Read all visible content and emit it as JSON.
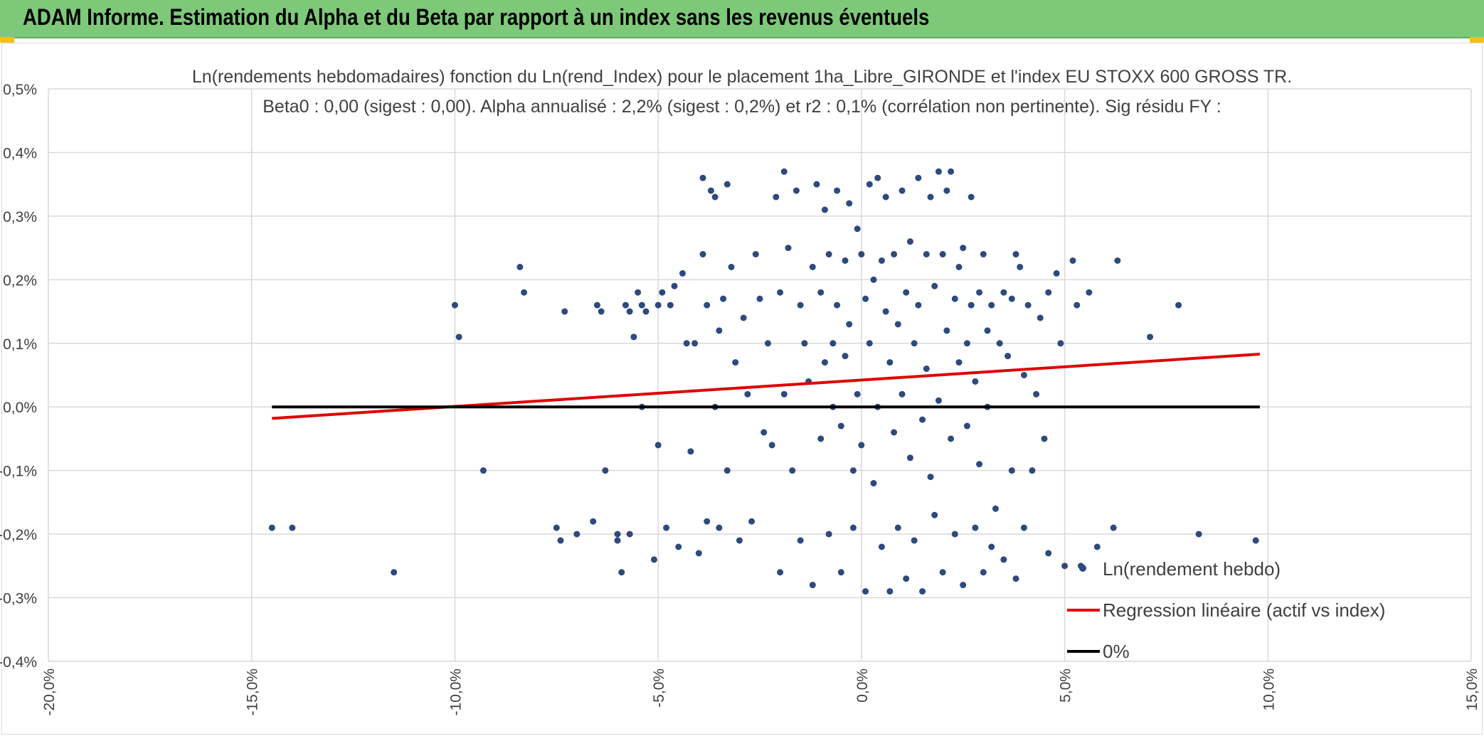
{
  "banner": {
    "title": "ADAM Informe. Estimation du Alpha et du Beta par rapport à un index sans les revenus éventuels",
    "background": "#7ec87a"
  },
  "chart_data": {
    "type": "scatter",
    "title": "Ln(rendements hebdomadaires) fonction du Ln(rend_Index) pour le placement 1ha_Libre_GIRONDE et l'index EU STOXX 600 GROSS TR.",
    "subtitle": "Beta0 : 0,00 (sigest : 0,00). Alpha annualisé : 2,2% (sigest : 0,2%) et r2 : 0,1% (corrélation non pertinente). Sig résidu FY :",
    "xlabel": "",
    "ylabel": "",
    "xlim": [
      -20,
      15
    ],
    "ylim": [
      -0.4,
      0.5
    ],
    "x_ticks": [
      "-20,0%",
      "-15,0%",
      "-10,0%",
      "-5,0%",
      "0,0%",
      "5,0%",
      "10,0%",
      "15,0%"
    ],
    "y_ticks": [
      "-0,4%",
      "-0,3%",
      "-0,2%",
      "-0,1%",
      "0,0%",
      "0,1%",
      "0,2%",
      "0,3%",
      "0,4%",
      "0,5%"
    ],
    "grid": true,
    "legend_position": "bottom-right",
    "series": [
      {
        "name": "Ln(rendement hebdo)",
        "kind": "scatter",
        "color": "#2e4a7d",
        "points": [
          [
            -14.5,
            -0.19
          ],
          [
            -14.0,
            -0.19
          ],
          [
            -11.5,
            -0.26
          ],
          [
            -10.0,
            0.16
          ],
          [
            -9.9,
            0.11
          ],
          [
            -9.3,
            -0.1
          ],
          [
            -8.4,
            0.22
          ],
          [
            -8.3,
            0.18
          ],
          [
            -7.5,
            -0.19
          ],
          [
            -7.4,
            -0.21
          ],
          [
            -7.3,
            0.15
          ],
          [
            -7.0,
            -0.2
          ],
          [
            -6.6,
            -0.18
          ],
          [
            -6.5,
            0.16
          ],
          [
            -6.4,
            0.15
          ],
          [
            -6.3,
            -0.1
          ],
          [
            -6.0,
            -0.21
          ],
          [
            -6.0,
            -0.2
          ],
          [
            -5.9,
            -0.26
          ],
          [
            -5.8,
            0.16
          ],
          [
            -5.7,
            0.15
          ],
          [
            -5.7,
            -0.2
          ],
          [
            -5.6,
            0.11
          ],
          [
            -5.5,
            0.18
          ],
          [
            -5.4,
            0.16
          ],
          [
            -5.4,
            0.0
          ],
          [
            -5.3,
            0.15
          ],
          [
            -5.1,
            -0.24
          ],
          [
            -5.0,
            0.16
          ],
          [
            -5.0,
            -0.06
          ],
          [
            -4.9,
            0.18
          ],
          [
            -4.8,
            -0.19
          ],
          [
            -4.7,
            0.16
          ],
          [
            -4.6,
            0.19
          ],
          [
            -4.5,
            -0.22
          ],
          [
            -4.4,
            0.21
          ],
          [
            -4.3,
            0.1
          ],
          [
            -4.2,
            -0.07
          ],
          [
            -4.1,
            0.1
          ],
          [
            -4.0,
            -0.23
          ],
          [
            -3.9,
            0.36
          ],
          [
            -3.9,
            0.24
          ],
          [
            -3.8,
            0.16
          ],
          [
            -3.8,
            -0.18
          ],
          [
            -3.7,
            0.34
          ],
          [
            -3.6,
            0.33
          ],
          [
            -3.6,
            0.0
          ],
          [
            -3.5,
            0.12
          ],
          [
            -3.5,
            -0.19
          ],
          [
            -3.4,
            0.17
          ],
          [
            -3.3,
            0.35
          ],
          [
            -3.3,
            -0.1
          ],
          [
            -3.2,
            0.22
          ],
          [
            -3.1,
            0.07
          ],
          [
            -3.0,
            -0.21
          ],
          [
            -2.9,
            0.14
          ],
          [
            -2.8,
            0.02
          ],
          [
            -2.7,
            -0.18
          ],
          [
            -2.6,
            0.24
          ],
          [
            -2.5,
            0.17
          ],
          [
            -2.4,
            -0.04
          ],
          [
            -2.3,
            0.1
          ],
          [
            -2.2,
            -0.06
          ],
          [
            -2.1,
            0.33
          ],
          [
            -2.0,
            0.18
          ],
          [
            -2.0,
            -0.26
          ],
          [
            -1.9,
            0.37
          ],
          [
            -1.9,
            0.02
          ],
          [
            -1.8,
            0.25
          ],
          [
            -1.7,
            -0.1
          ],
          [
            -1.6,
            0.34
          ],
          [
            -1.5,
            0.16
          ],
          [
            -1.5,
            -0.21
          ],
          [
            -1.4,
            0.1
          ],
          [
            -1.3,
            0.04
          ],
          [
            -1.2,
            0.22
          ],
          [
            -1.2,
            -0.28
          ],
          [
            -1.1,
            0.35
          ],
          [
            -1.0,
            0.18
          ],
          [
            -1.0,
            -0.05
          ],
          [
            -0.9,
            0.31
          ],
          [
            -0.9,
            0.07
          ],
          [
            -0.8,
            0.24
          ],
          [
            -0.8,
            -0.2
          ],
          [
            -0.7,
            0.1
          ],
          [
            -0.7,
            0.0
          ],
          [
            -0.6,
            0.34
          ],
          [
            -0.6,
            0.16
          ],
          [
            -0.5,
            -0.03
          ],
          [
            -0.5,
            -0.26
          ],
          [
            -0.4,
            0.23
          ],
          [
            -0.4,
            0.08
          ],
          [
            -0.3,
            0.32
          ],
          [
            -0.3,
            0.13
          ],
          [
            -0.2,
            -0.1
          ],
          [
            -0.2,
            -0.19
          ],
          [
            -0.1,
            0.28
          ],
          [
            -0.1,
            0.02
          ],
          [
            0.0,
            0.24
          ],
          [
            0.0,
            -0.06
          ],
          [
            0.1,
            0.17
          ],
          [
            0.1,
            -0.29
          ],
          [
            0.2,
            0.35
          ],
          [
            0.2,
            0.1
          ],
          [
            0.3,
            0.2
          ],
          [
            0.3,
            -0.12
          ],
          [
            0.4,
            0.36
          ],
          [
            0.4,
            0.0
          ],
          [
            0.5,
            0.23
          ],
          [
            0.5,
            -0.22
          ],
          [
            0.6,
            0.33
          ],
          [
            0.6,
            0.15
          ],
          [
            0.7,
            0.07
          ],
          [
            0.7,
            -0.29
          ],
          [
            0.8,
            0.24
          ],
          [
            0.8,
            -0.04
          ],
          [
            0.9,
            0.13
          ],
          [
            0.9,
            -0.19
          ],
          [
            1.0,
            0.34
          ],
          [
            1.0,
            0.02
          ],
          [
            1.1,
            0.18
          ],
          [
            1.1,
            -0.27
          ],
          [
            1.2,
            0.26
          ],
          [
            1.2,
            -0.08
          ],
          [
            1.3,
            0.1
          ],
          [
            1.3,
            -0.21
          ],
          [
            1.4,
            0.36
          ],
          [
            1.4,
            0.16
          ],
          [
            1.5,
            -0.02
          ],
          [
            1.5,
            -0.29
          ],
          [
            1.6,
            0.24
          ],
          [
            1.6,
            0.06
          ],
          [
            1.7,
            0.33
          ],
          [
            1.7,
            -0.11
          ],
          [
            1.8,
            0.19
          ],
          [
            1.8,
            -0.17
          ],
          [
            1.9,
            0.37
          ],
          [
            1.9,
            0.01
          ],
          [
            2.0,
            0.24
          ],
          [
            2.0,
            -0.26
          ],
          [
            2.1,
            0.34
          ],
          [
            2.1,
            0.12
          ],
          [
            2.2,
            0.37
          ],
          [
            2.2,
            -0.05
          ],
          [
            2.3,
            0.17
          ],
          [
            2.3,
            -0.2
          ],
          [
            2.4,
            0.22
          ],
          [
            2.4,
            0.07
          ],
          [
            2.5,
            0.25
          ],
          [
            2.5,
            -0.28
          ],
          [
            2.6,
            0.1
          ],
          [
            2.6,
            -0.03
          ],
          [
            2.7,
            0.33
          ],
          [
            2.7,
            0.16
          ],
          [
            2.8,
            0.04
          ],
          [
            2.8,
            -0.19
          ],
          [
            2.9,
            0.18
          ],
          [
            2.9,
            -0.09
          ],
          [
            3.0,
            0.24
          ],
          [
            3.0,
            -0.26
          ],
          [
            3.1,
            0.12
          ],
          [
            3.1,
            0.0
          ],
          [
            3.2,
            0.16
          ],
          [
            3.2,
            -0.22
          ],
          [
            3.3,
            -0.16
          ],
          [
            3.4,
            0.1
          ],
          [
            3.5,
            0.18
          ],
          [
            3.5,
            -0.24
          ],
          [
            3.6,
            0.08
          ],
          [
            3.7,
            -0.1
          ],
          [
            3.7,
            0.17
          ],
          [
            3.8,
            0.24
          ],
          [
            3.8,
            -0.27
          ],
          [
            3.9,
            0.22
          ],
          [
            4.0,
            0.05
          ],
          [
            4.0,
            -0.19
          ],
          [
            4.1,
            0.16
          ],
          [
            4.2,
            -0.1
          ],
          [
            4.3,
            0.02
          ],
          [
            4.4,
            0.14
          ],
          [
            4.5,
            -0.05
          ],
          [
            4.6,
            0.18
          ],
          [
            4.6,
            -0.23
          ],
          [
            4.8,
            0.21
          ],
          [
            4.9,
            0.1
          ],
          [
            5.0,
            -0.25
          ],
          [
            5.2,
            0.23
          ],
          [
            5.3,
            0.16
          ],
          [
            5.4,
            -0.25
          ],
          [
            5.6,
            0.18
          ],
          [
            5.8,
            -0.22
          ],
          [
            6.2,
            -0.19
          ],
          [
            6.3,
            0.23
          ],
          [
            7.1,
            0.11
          ],
          [
            7.8,
            0.16
          ],
          [
            8.3,
            -0.2
          ],
          [
            9.7,
            -0.21
          ]
        ]
      },
      {
        "name": "Regression linéaire (actif vs index)",
        "kind": "line",
        "color": "#e00000",
        "x": [
          -14.5,
          9.8
        ],
        "y": [
          -0.018,
          0.083
        ]
      },
      {
        "name": "0%",
        "kind": "line",
        "color": "#000000",
        "x": [
          -14.5,
          9.8
        ],
        "y": [
          0.0,
          0.0
        ]
      }
    ]
  }
}
